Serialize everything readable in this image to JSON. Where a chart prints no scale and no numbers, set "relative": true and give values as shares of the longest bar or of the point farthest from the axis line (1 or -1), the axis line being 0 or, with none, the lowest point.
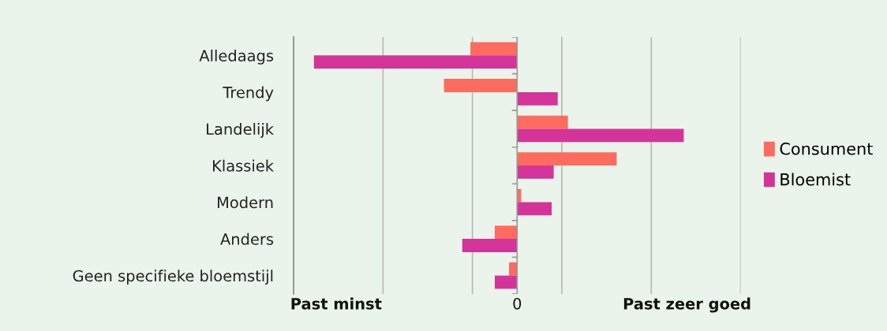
{
  "chart_data": {
    "type": "bar",
    "orientation": "horizontal",
    "relative": true,
    "categories": [
      "Alledaags",
      "Trendy",
      "Landelijk",
      "Klassiek",
      "Modern",
      "Anders",
      "Geen specifieke bloemstijl"
    ],
    "series": [
      {
        "name": "Consument",
        "color": "#ff6b5e",
        "values": [
          -0.23,
          -0.36,
          0.25,
          0.49,
          0.02,
          -0.11,
          -0.04
        ]
      },
      {
        "name": "Bloemist",
        "color": "#d4349a",
        "values": [
          -1,
          0.2,
          0.82,
          0.18,
          0.17,
          -0.27,
          -0.11
        ]
      }
    ],
    "annotations": [
      "Past minst",
      "0",
      "Past zeer goed"
    ],
    "grid": "x",
    "legend": "right"
  }
}
